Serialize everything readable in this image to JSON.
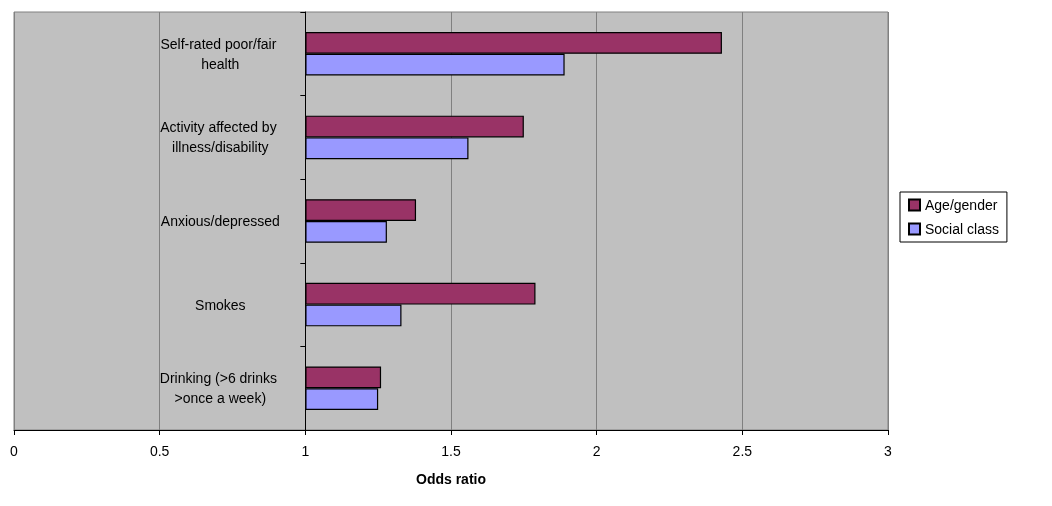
{
  "chart_data": {
    "type": "bar",
    "orientation": "horizontal",
    "xlabel": "Odds ratio",
    "categories": [
      "Self-rated poor/fair health",
      "Activity affected by illness/disability",
      "Anxious/depressed",
      "Smokes",
      "Drinking (>6 drinks >once a week)"
    ],
    "series": [
      {
        "name": "Age/gender",
        "color": "#993366",
        "base": [
          1,
          1,
          1,
          1,
          1
        ],
        "values": [
          1.43,
          0.75,
          0.38,
          0.79,
          0.26
        ]
      },
      {
        "name": "Social class",
        "color": "#9999ff",
        "base": [
          1,
          1,
          1,
          1,
          1
        ],
        "values": [
          0.89,
          0.56,
          0.28,
          0.33,
          0.25
        ]
      }
    ],
    "xlim": [
      0,
      3
    ],
    "xticks": [
      0,
      0.5,
      1,
      1.5,
      2,
      2.5,
      3
    ],
    "grid": "x",
    "legend": "right"
  }
}
